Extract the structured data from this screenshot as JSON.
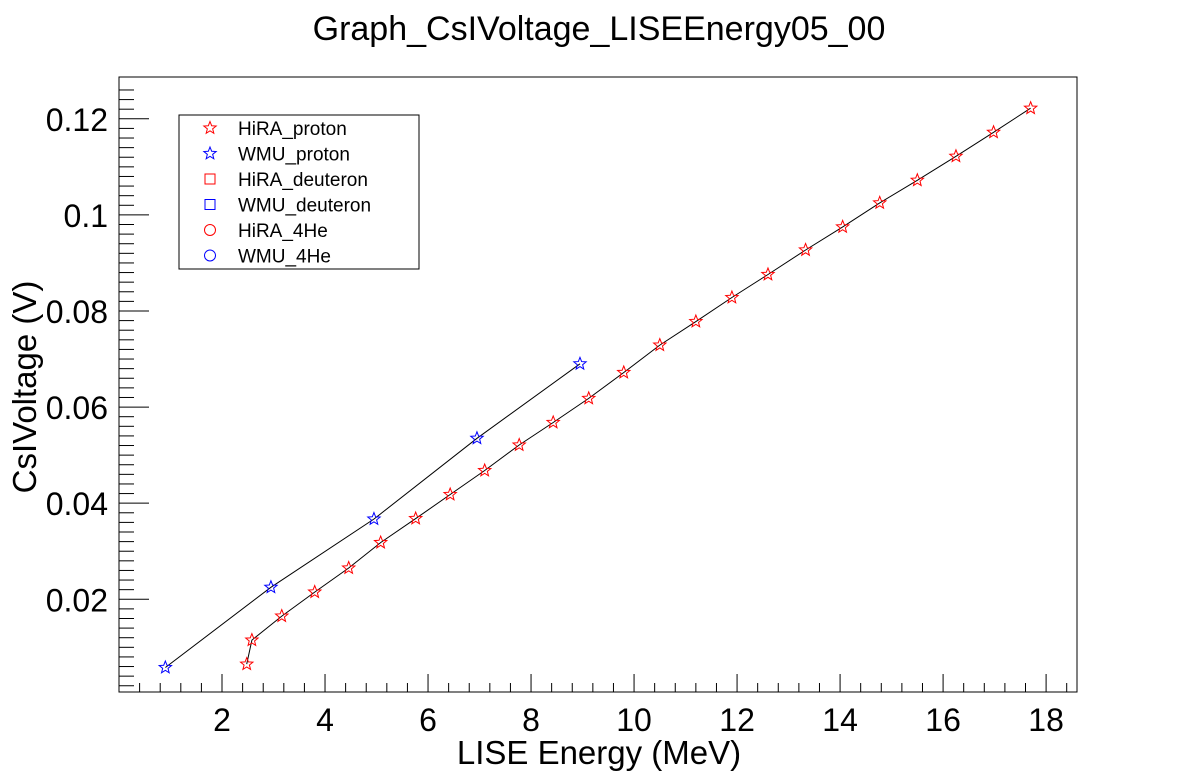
{
  "chart_data": {
    "type": "scatter",
    "title": "Graph_CsIVoltage_LISEEnergy05_00",
    "xlabel": "LISE Energy (MeV)",
    "ylabel": "CsIVoltage (V)",
    "xlim": [
      0.0,
      18.6
    ],
    "ylim": [
      0.0007,
      0.1287
    ],
    "x_ticks": [
      2,
      4,
      6,
      8,
      10,
      12,
      14,
      16,
      18
    ],
    "x_tick_labels": [
      "2",
      "4",
      "6",
      "8",
      "10",
      "12",
      "14",
      "16",
      "18"
    ],
    "y_ticks": [
      0.02,
      0.04,
      0.06,
      0.08,
      0.1,
      0.12
    ],
    "y_tick_labels": [
      "0.02",
      "0.04",
      "0.06",
      "0.08",
      "0.1",
      "0.12"
    ],
    "grid": false,
    "legend_position": "top-left",
    "series": [
      {
        "name": "HiRA_proton",
        "color": "#ff0000",
        "marker": "star",
        "connected": true,
        "x": [
          2.48,
          2.58,
          3.16,
          3.8,
          4.46,
          5.08,
          5.76,
          6.43,
          7.1,
          7.77,
          8.43,
          9.12,
          9.8,
          10.5,
          11.2,
          11.9,
          12.6,
          13.33,
          14.05,
          14.77,
          15.5,
          16.25,
          16.98,
          17.7
        ],
        "y": [
          0.0065,
          0.0115,
          0.0165,
          0.0215,
          0.0265,
          0.0318,
          0.0368,
          0.0418,
          0.0468,
          0.0521,
          0.0568,
          0.0618,
          0.0672,
          0.0729,
          0.0778,
          0.0828,
          0.0876,
          0.0927,
          0.0975,
          0.1025,
          0.1072,
          0.1122,
          0.1172,
          0.1222
        ]
      },
      {
        "name": "WMU_proton",
        "color": "#0000ff",
        "marker": "star",
        "connected": true,
        "x": [
          0.9,
          2.95,
          4.95,
          6.95,
          8.95
        ],
        "y": [
          0.0058,
          0.0225,
          0.0367,
          0.0535,
          0.069
        ]
      },
      {
        "name": "HiRA_deuteron",
        "color": "#ff0000",
        "marker": "square",
        "x": [],
        "y": []
      },
      {
        "name": "WMU_deuteron",
        "color": "#0000ff",
        "marker": "square",
        "x": [],
        "y": []
      },
      {
        "name": "HiRA_4He",
        "color": "#ff0000",
        "marker": "circle",
        "x": [],
        "y": []
      },
      {
        "name": "WMU_4He",
        "color": "#0000ff",
        "marker": "circle",
        "x": [],
        "y": []
      }
    ]
  }
}
